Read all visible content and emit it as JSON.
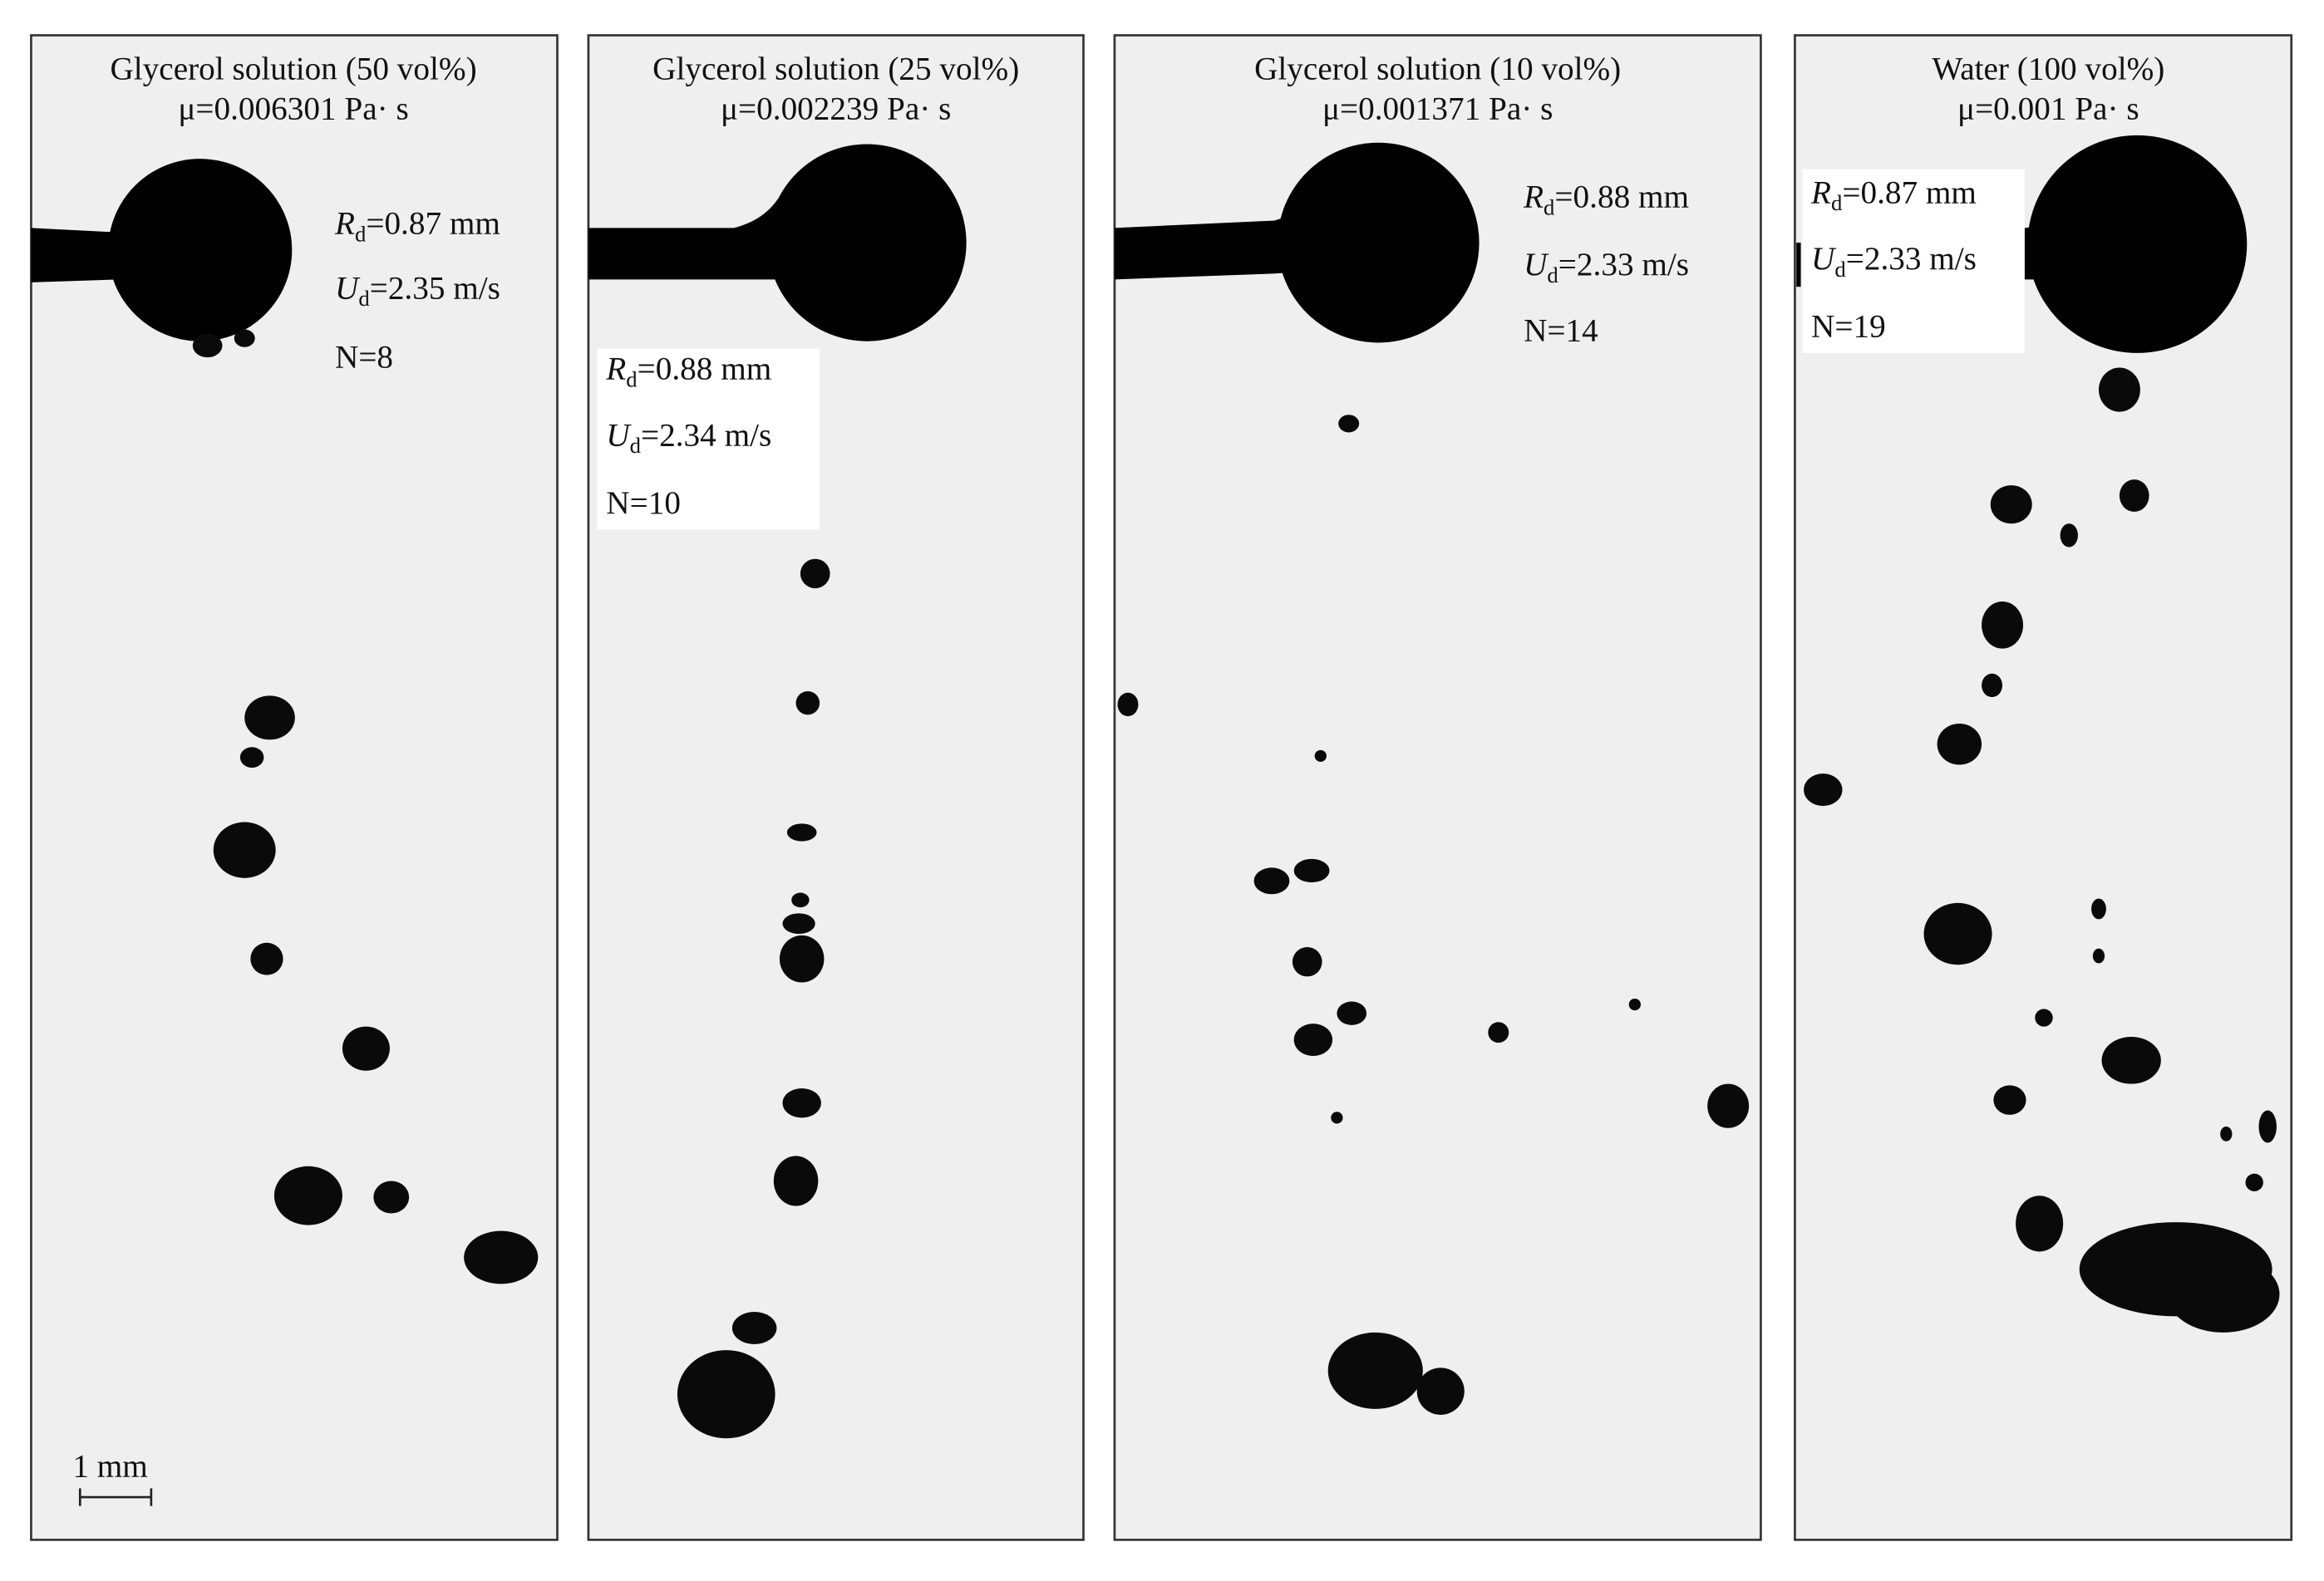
{
  "panels": [
    {
      "title": "Glycerol solution (50 vol%)",
      "viscosity": "μ=0.006301 Pa· s",
      "radius": {
        "symbol": "R",
        "subscript": "d",
        "text": "=0.87 mm"
      },
      "velocity": {
        "symbol": "U",
        "subscript": "d",
        "text": "=2.35 m/s"
      },
      "count": "N=8"
    },
    {
      "title": "Glycerol solution (25 vol%)",
      "viscosity": "μ=0.002239 Pa· s",
      "radius": {
        "symbol": "R",
        "subscript": "d",
        "text": "=0.88 mm"
      },
      "velocity": {
        "symbol": "U",
        "subscript": "d",
        "text": "=2.34 m/s"
      },
      "count": "N=10"
    },
    {
      "title": "Glycerol solution (10 vol%)",
      "viscosity": "μ=0.001371 Pa· s",
      "radius": {
        "symbol": "R",
        "subscript": "d",
        "text": "=0.88 mm"
      },
      "velocity": {
        "symbol": "U",
        "subscript": "d",
        "text": "=2.33 m/s"
      },
      "count": "N=14"
    },
    {
      "title": "Water (100 vol%)",
      "viscosity": "μ=0.001 Pa· s",
      "radius": {
        "symbol": "R",
        "subscript": "d",
        "text": "=0.87 mm"
      },
      "velocity": {
        "symbol": "U",
        "subscript": "d",
        "text": "=2.33 m/s"
      },
      "count": "N=19"
    }
  ],
  "scale_bar": "1 mm"
}
